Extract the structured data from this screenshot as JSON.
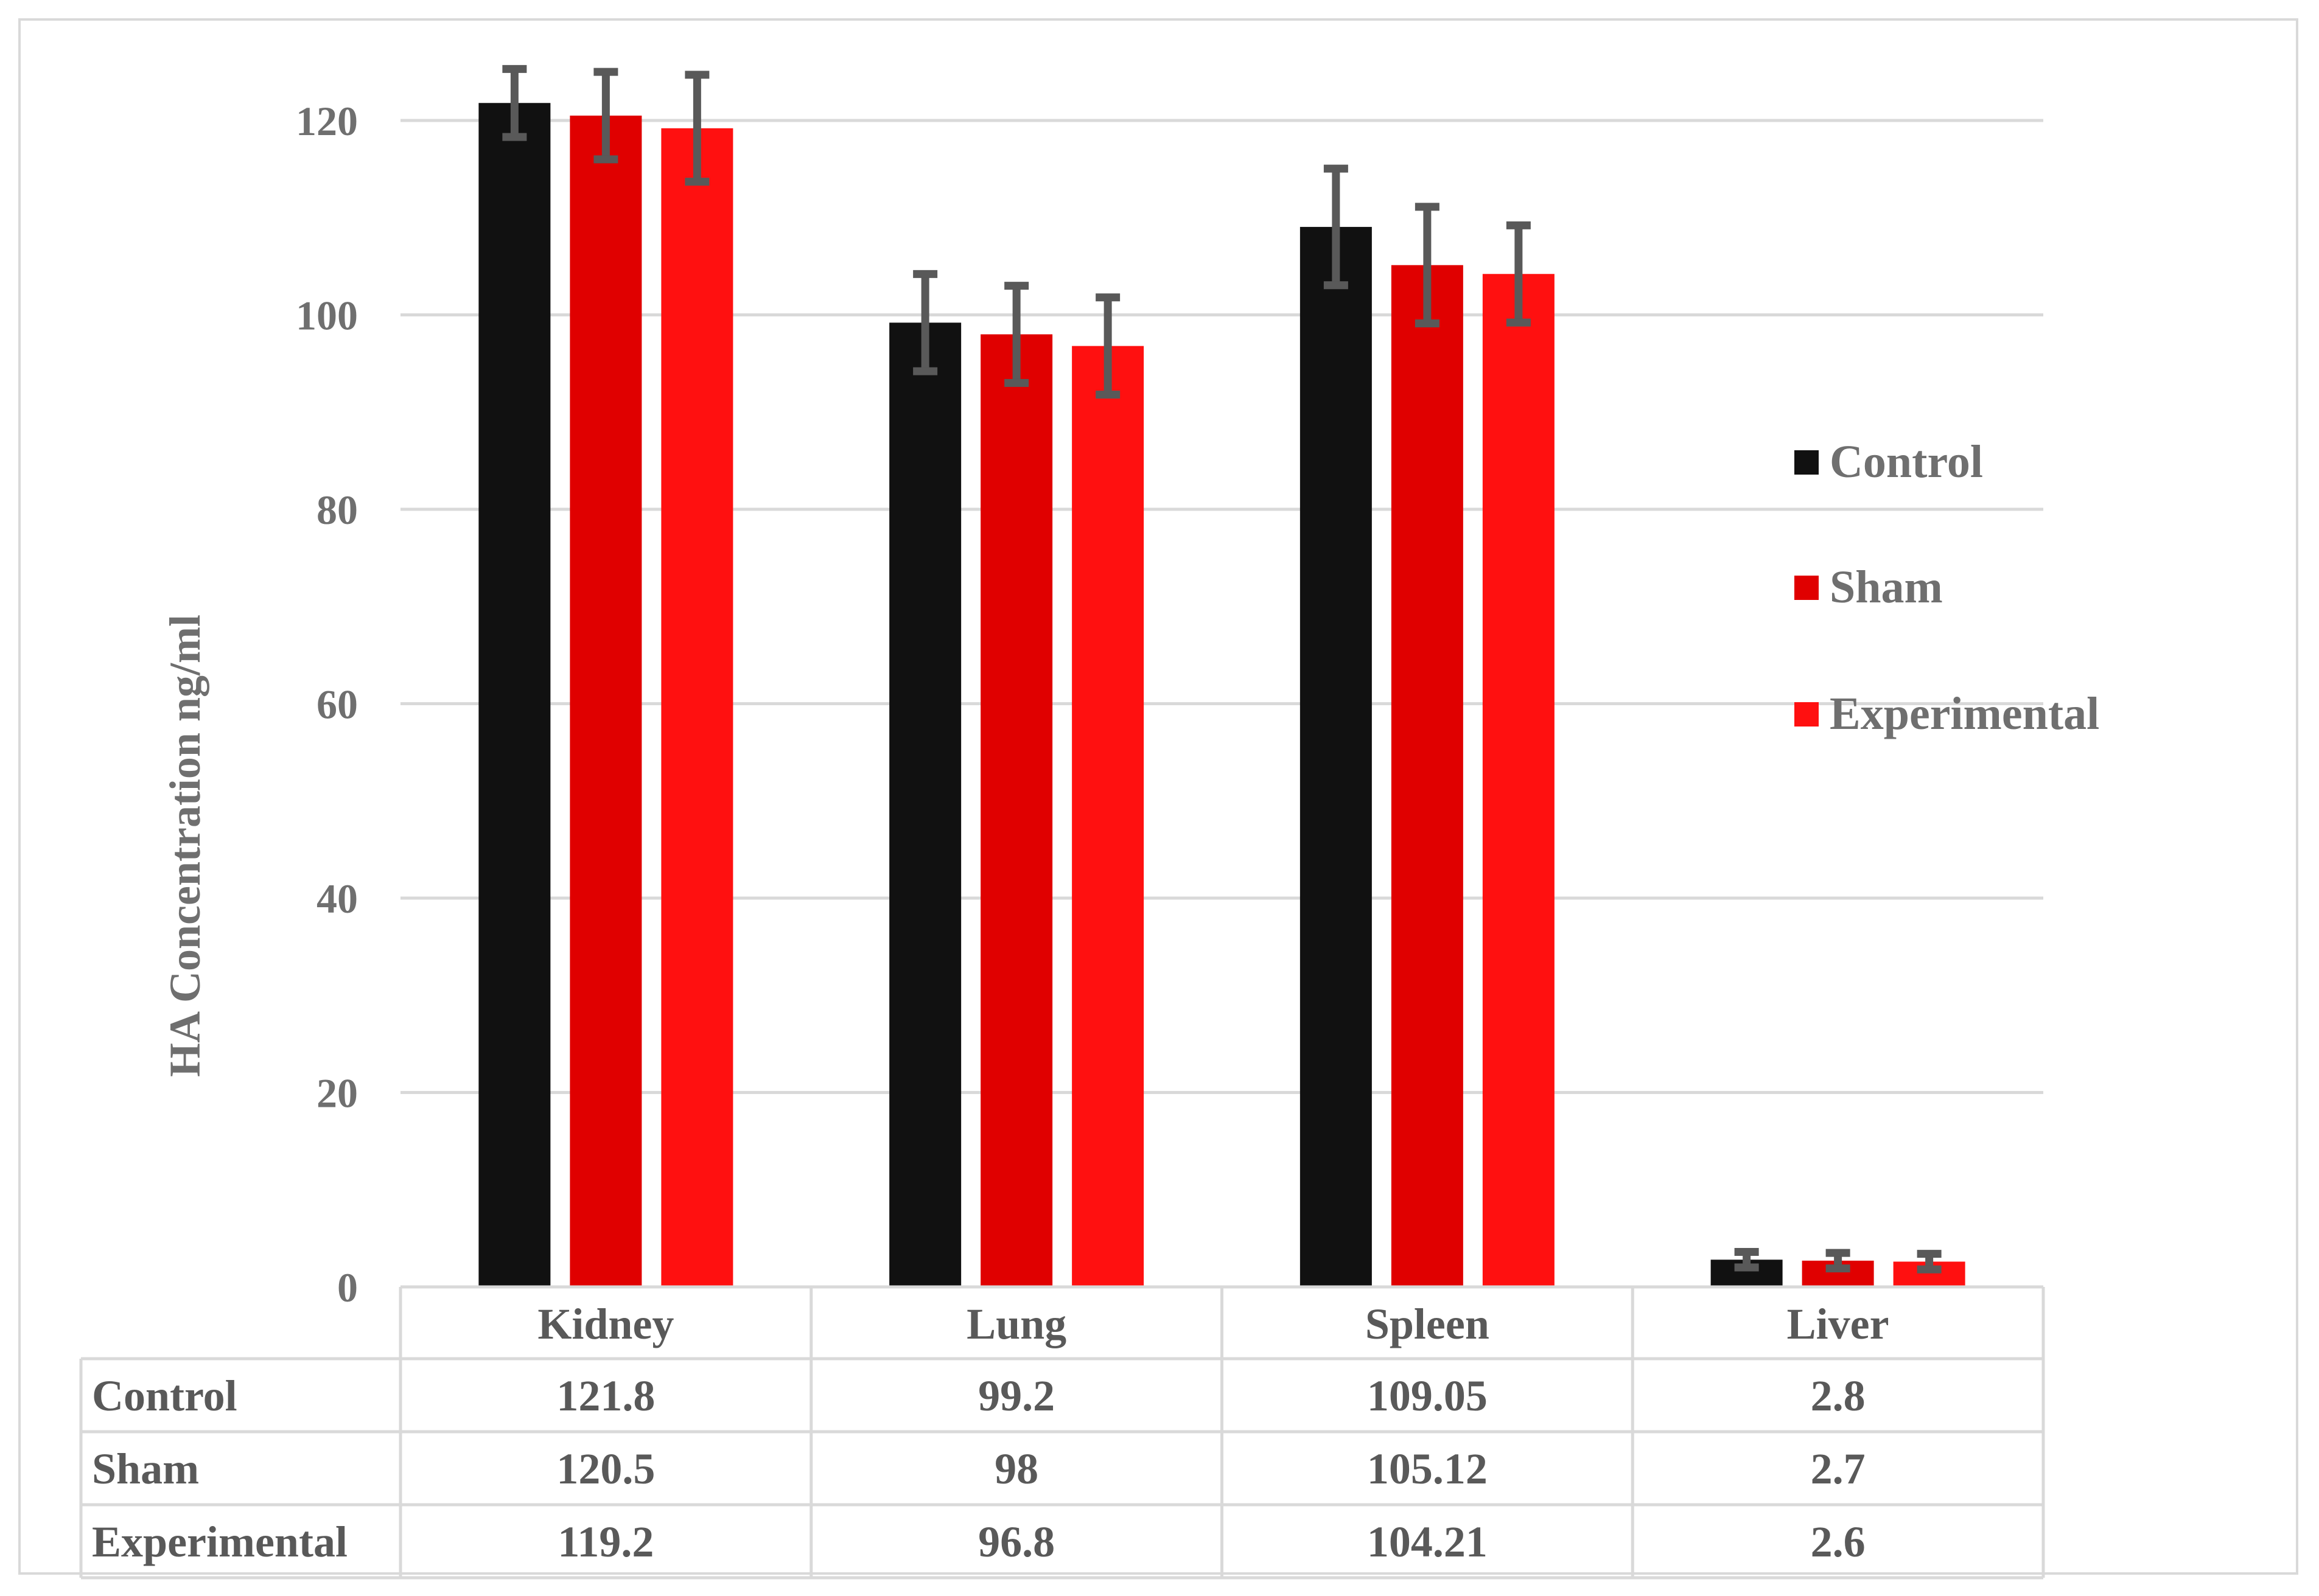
{
  "chart_data": {
    "type": "bar",
    "title": "",
    "ylabel": "HA Concentration ng/ml",
    "xlabel": "",
    "ylim": [
      0,
      120
    ],
    "yticks": [
      0,
      20,
      40,
      60,
      80,
      100,
      120
    ],
    "grid": true,
    "legend_position": "right",
    "categories": [
      "Kidney",
      "Lung",
      "Spleen",
      "Liver"
    ],
    "series": [
      {
        "name": "Control",
        "color": "#111111",
        "values": [
          121.8,
          99.2,
          109.05,
          2.8
        ],
        "error": [
          3.5,
          5.0,
          6.0,
          0.8
        ]
      },
      {
        "name": "Sham",
        "color": "#e00000",
        "values": [
          120.5,
          98,
          105.12,
          2.7
        ],
        "error": [
          4.5,
          5.0,
          6.0,
          0.8
        ]
      },
      {
        "name": "Experimental",
        "color": "#ff1010",
        "values": [
          119.2,
          96.8,
          104.21,
          2.6
        ],
        "error": [
          5.5,
          5.0,
          5.0,
          0.8
        ]
      }
    ],
    "data_table": {
      "rows": [
        {
          "label": "Control",
          "cells": [
            "121.8",
            "99.2",
            "109.05",
            "2.8"
          ]
        },
        {
          "label": "Sham",
          "cells": [
            "120.5",
            "98",
            "105.12",
            "2.7"
          ]
        },
        {
          "label": "Experimental",
          "cells": [
            "119.2",
            "96.8",
            "104.21",
            "2.6"
          ]
        }
      ]
    },
    "error_bar_color": "#595959"
  }
}
